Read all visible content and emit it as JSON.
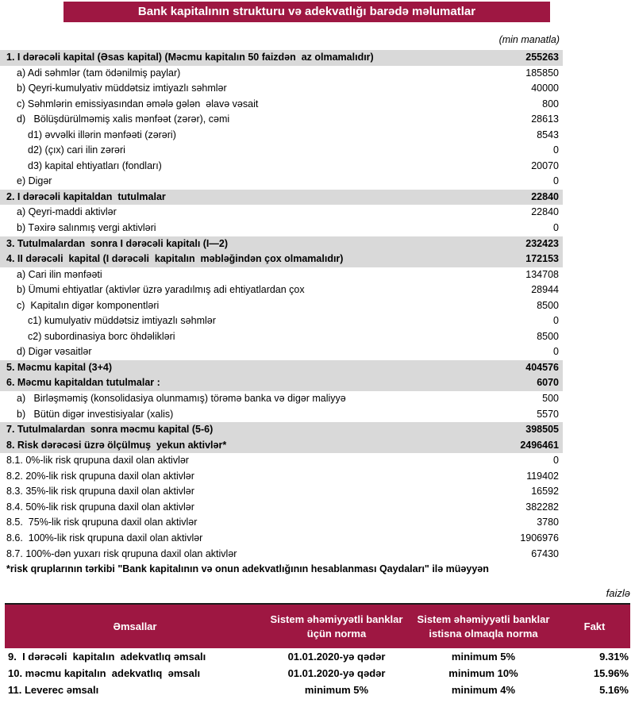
{
  "page": {
    "title": "Bank kapitalının strukturu və adekvatlığı barədə məlumatlar",
    "unit_note": "(min manatla)",
    "percent_note": "faizlə"
  },
  "colors": {
    "accent_maroon": "#9E1742",
    "section_row_gray": "#D9D9D9"
  },
  "capital_table": {
    "rows": [
      {
        "label": "1. I dərəcəli kapital (Əsas kapital) (Məcmu kapitalın 50 faizdən  az olmamalıdır)",
        "value": "255263",
        "style": "section",
        "indent": 0
      },
      {
        "label": "a) Adi səhmlər (tam ödənilmiş paylar)",
        "value": "185850",
        "style": "normal",
        "indent": 1
      },
      {
        "label": "b) Qeyri-kumulyativ müddətsiz imtiyazlı səhmlər",
        "value": "40000",
        "style": "normal",
        "indent": 1
      },
      {
        "label": "c) Səhmlərin emissiyasından əmələ gələn  əlavə vəsait",
        "value": "800",
        "style": "normal",
        "indent": 1
      },
      {
        "label": "d)   Bölüşdürülməmiş xalis mənfəət (zərər), cəmi",
        "value": "28613",
        "style": "normal",
        "indent": 1
      },
      {
        "label": "d1) əvvəlki illərin mənfəəti (zərəri)",
        "value": "8543",
        "style": "normal",
        "indent": 2
      },
      {
        "label": "d2) (çıx) cari ilin zərəri",
        "value": "0",
        "style": "normal",
        "indent": 2
      },
      {
        "label": "d3) kapital ehtiyatları (fondları)",
        "value": "20070",
        "style": "normal",
        "indent": 2
      },
      {
        "label": "e) Digər",
        "value": "0",
        "style": "normal",
        "indent": 1
      },
      {
        "label": "2. I dərəcəli kapitaldan  tutulmalar",
        "value": "22840",
        "style": "section",
        "indent": 0
      },
      {
        "label": "a) Qeyri-maddi aktivlər",
        "value": "22840",
        "style": "normal",
        "indent": 1
      },
      {
        "label": "b) Təxirə salınmış vergi aktivləri",
        "value": "0",
        "style": "normal",
        "indent": 1
      },
      {
        "label": "3. Tutulmalardan  sonra I dərəcəli kapitalı (I—2)",
        "value": "232423",
        "style": "section",
        "indent": 0
      },
      {
        "label": "4. II dərəcəli  kapital (I dərəcəli  kapitalın  məbləğindən çox olmamalıdır)",
        "value": "172153",
        "style": "section",
        "indent": 0
      },
      {
        "label": "a) Cari ilin mənfəəti",
        "value": "134708",
        "style": "normal",
        "indent": 1
      },
      {
        "label": "b) Ümumi ehtiyatlar (aktivlər üzrə yaradılmış adi ehtiyatlardan çox",
        "value": "28944",
        "style": "normal",
        "indent": 1
      },
      {
        "label": "c)  Kapitalın digər komponentləri",
        "value": "8500",
        "style": "normal",
        "indent": 1
      },
      {
        "label": "c1) kumulyativ müddətsiz imtiyazlı səhmlər",
        "value": "0",
        "style": "normal",
        "indent": 2
      },
      {
        "label": "c2) subordinasiya borc öhdəlikləri",
        "value": "8500",
        "style": "normal",
        "indent": 2
      },
      {
        "label": "d) Digər vəsaitlər",
        "value": "0",
        "style": "normal",
        "indent": 1
      },
      {
        "label": "5. Məcmu kapital (3+4)",
        "value": "404576",
        "style": "section",
        "indent": 0
      },
      {
        "label": "6. Məcmu kapitaldan tutulmalar :",
        "value": "6070",
        "style": "section",
        "indent": 0
      },
      {
        "label": "a)   Birləşməmiş (konsolidasiya olunmamış) törəmə banka və digər maliyyə",
        "value": "500",
        "style": "normal",
        "indent": 1
      },
      {
        "label": "b)   Bütün digər investisiyalar (xalis)",
        "value": "5570",
        "style": "normal",
        "indent": 1
      },
      {
        "label": "7. Tutulmalardan  sonra məcmu kapital (5-6)",
        "value": "398505",
        "style": "section",
        "indent": 0
      },
      {
        "label": "8. Risk dərəcəsi üzrə ölçülmuş  yekun aktivlər*",
        "value": "2496461",
        "style": "section",
        "indent": 0
      },
      {
        "label": "8.1. 0%-lik risk qrupuna daxil olan aktivlər",
        "value": "0",
        "style": "normal",
        "indent": 0
      },
      {
        "label": "8.2. 20%-lik risk qrupuna daxil olan aktivlər",
        "value": "119402",
        "style": "normal",
        "indent": 0
      },
      {
        "label": "8.3. 35%-lik risk qrupuna daxil olan aktivlər",
        "value": "16592",
        "style": "normal",
        "indent": 0
      },
      {
        "label": "8.4. 50%-lik risk qrupuna daxil olan aktivlər",
        "value": "382282",
        "style": "normal",
        "indent": 0
      },
      {
        "label": "8.5.  75%-lik risk qrupuna daxil olan aktivlər",
        "value": "3780",
        "style": "normal",
        "indent": 0
      },
      {
        "label": "8.6.  100%-lik risk qrupuna daxil olan aktivlər",
        "value": "1906976",
        "style": "normal",
        "indent": 0
      },
      {
        "label": "8.7. 100%-dən yuxarı risk qrupuna daxil olan aktivlər",
        "value": "67430",
        "style": "normal",
        "indent": 0
      }
    ],
    "footnote": "*risk qruplarının tərkibi \"Bank kapitalının və onun adekvatlığının hesablanması Qaydaları\" ilə müəyyən"
  },
  "ratios_table": {
    "headers": [
      "Əmsallar",
      "Sistem əhəmiyyətli banklar üçün norma",
      "Sistem əhəmiyyətli banklar istisna olmaqla norma",
      "Fakt"
    ],
    "rows": [
      {
        "label": "9.  I dərəcəli  kapitalın  adekvatlıq əmsalı",
        "norm_systemic": "01.01.2020-yə qədər",
        "norm_other": "minimum 5%",
        "fact": "9.31%"
      },
      {
        "label": "10. məcmu kapitalın  adekvatlıq  əmsalı",
        "norm_systemic": "01.01.2020-yə qədər",
        "norm_other": "minimum 10%",
        "fact": "15.96%"
      },
      {
        "label": "11. Leverec əmsalı",
        "norm_systemic": "minimum 5%",
        "norm_other": "minimum 4%",
        "fact": "5.16%"
      }
    ]
  }
}
